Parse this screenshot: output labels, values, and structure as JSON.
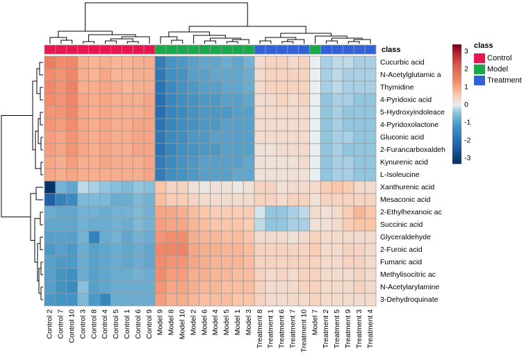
{
  "chart_data": {
    "type": "heatmap",
    "title": "",
    "annotation_label": "class",
    "columns": [
      "Control 2",
      "Control 7",
      "Control 10",
      "Control 3",
      "Control 8",
      "Control 4",
      "Control 5",
      "Control 1",
      "Control 6",
      "Control 9",
      "Model 9",
      "Model 8",
      "Model 10",
      "Model 2",
      "Model 6",
      "Model 4",
      "Model 5",
      "Model 1",
      "Model 3",
      "Treatment 8",
      "Treatment 1",
      "Treatment 6",
      "Treatment 7",
      "Treatment 10",
      "Model 7",
      "Treatment 2",
      "Treatment 5",
      "Treatment 9",
      "Treatment 3",
      "Treatment 4"
    ],
    "column_class": [
      "Control",
      "Control",
      "Control",
      "Control",
      "Control",
      "Control",
      "Control",
      "Control",
      "Control",
      "Control",
      "Model",
      "Model",
      "Model",
      "Model",
      "Model",
      "Model",
      "Model",
      "Model",
      "Model",
      "Treatment",
      "Treatment",
      "Treatment",
      "Treatment",
      "Treatment",
      "Model",
      "Treatment",
      "Treatment",
      "Treatment",
      "Treatment",
      "Treatment"
    ],
    "rows": [
      "Cucurbic acid",
      "N-Acetylglutamic a",
      "Thymidine",
      "4-Pyridoxic acid",
      "5-Hydroxyindoleace",
      "4-Pyridoxolactone",
      "Gluconic acid",
      "2-Furancarboxaldeh",
      "Kynurenic acid",
      "L-Isoleucine",
      "Xanthurenic acid",
      "Mesaconic acid",
      "2-Ethylhexanoic ac",
      "Succinic acid",
      "Glyceraldehyde",
      "2-Furoic acid",
      "Fumaric acid",
      "Methylisocitric ac",
      "N-Acetylarylamine",
      "3-Dehydroquinate"
    ],
    "values": [
      [
        1.6,
        1.3,
        1.4,
        0.9,
        0.8,
        0.9,
        0.8,
        0.8,
        0.9,
        0.9,
        -1.7,
        -1.2,
        -1.1,
        -1.0,
        -0.9,
        -0.9,
        -0.8,
        -0.9,
        -0.7,
        0.3,
        0.4,
        0.4,
        0.3,
        0.4,
        0.0,
        -0.3,
        -0.2,
        -0.2,
        -0.3,
        -0.3
      ],
      [
        1.3,
        1.2,
        1.4,
        0.9,
        0.8,
        1.0,
        0.8,
        0.8,
        0.9,
        0.9,
        -1.8,
        -1.3,
        -1.2,
        -1.0,
        -1.0,
        -0.9,
        -0.9,
        -0.9,
        -0.8,
        0.3,
        0.4,
        0.4,
        0.4,
        0.4,
        0.0,
        -0.3,
        -0.2,
        -0.3,
        -0.3,
        -0.3
      ],
      [
        1.4,
        1.2,
        1.5,
        0.9,
        0.9,
        1.0,
        0.9,
        0.8,
        0.9,
        0.9,
        -1.9,
        -1.4,
        -1.2,
        -1.1,
        -1.0,
        -1.0,
        -0.9,
        -0.9,
        -0.8,
        0.3,
        0.4,
        0.4,
        0.4,
        0.4,
        0.0,
        -0.3,
        -0.2,
        -0.3,
        -0.3,
        -0.3
      ],
      [
        1.3,
        1.2,
        1.4,
        1.0,
        0.9,
        1.0,
        0.9,
        0.9,
        0.9,
        1.0,
        -2.0,
        -1.5,
        -1.3,
        -1.2,
        -1.1,
        -1.1,
        -1.0,
        -1.0,
        -0.9,
        0.3,
        0.3,
        0.4,
        0.3,
        0.4,
        0.0,
        -0.4,
        -0.3,
        -0.3,
        -0.4,
        -0.4
      ],
      [
        1.2,
        1.2,
        1.4,
        1.0,
        0.9,
        1.0,
        0.9,
        0.9,
        0.9,
        1.0,
        -2.0,
        -1.5,
        -1.4,
        -1.2,
        -1.1,
        -1.1,
        -1.1,
        -1.0,
        -1.0,
        0.3,
        0.3,
        0.3,
        0.3,
        0.3,
        0.0,
        -0.4,
        -0.3,
        -0.4,
        -0.4,
        -0.4
      ],
      [
        1.2,
        1.1,
        1.3,
        1.0,
        0.9,
        1.0,
        0.9,
        0.9,
        1.0,
        1.0,
        -1.9,
        -1.5,
        -1.3,
        -1.2,
        -1.1,
        -1.1,
        -1.0,
        -1.0,
        -1.0,
        0.3,
        0.3,
        0.3,
        0.3,
        0.3,
        0.0,
        -0.4,
        -0.3,
        -0.4,
        -0.4,
        -0.4
      ],
      [
        1.1,
        1.0,
        1.2,
        1.0,
        0.9,
        1.0,
        0.9,
        0.9,
        1.0,
        1.0,
        -1.8,
        -1.4,
        -1.3,
        -1.1,
        -1.1,
        -1.0,
        -1.0,
        -1.0,
        -1.0,
        0.3,
        0.3,
        0.3,
        0.3,
        0.3,
        0.0,
        -0.4,
        -0.3,
        -0.3,
        -0.4,
        -0.4
      ],
      [
        1.1,
        1.0,
        1.2,
        1.0,
        0.9,
        1.0,
        0.9,
        0.9,
        1.0,
        1.0,
        -1.9,
        -1.5,
        -1.3,
        -1.2,
        -1.1,
        -1.1,
        -1.0,
        -1.0,
        -1.0,
        0.2,
        0.2,
        0.3,
        0.3,
        0.3,
        0.0,
        -0.4,
        -0.3,
        -0.4,
        -0.4,
        -0.4
      ],
      [
        1.0,
        0.9,
        1.1,
        0.9,
        0.9,
        1.0,
        0.9,
        0.9,
        0.9,
        1.0,
        -1.7,
        -1.4,
        -1.2,
        -1.1,
        -1.0,
        -1.0,
        -1.0,
        -1.0,
        -0.9,
        0.2,
        0.2,
        0.2,
        0.2,
        0.3,
        0.0,
        -0.4,
        -0.3,
        -0.3,
        -0.4,
        -0.4
      ],
      [
        1.0,
        0.9,
        1.0,
        0.9,
        0.9,
        0.9,
        0.9,
        0.9,
        0.9,
        1.0,
        -1.7,
        -1.3,
        -1.2,
        -1.1,
        -1.0,
        -1.0,
        -1.0,
        -0.9,
        -0.9,
        0.2,
        0.2,
        0.2,
        0.2,
        0.2,
        0.0,
        -0.4,
        -0.3,
        -0.3,
        -0.4,
        -0.4
      ],
      [
        -3.2,
        -0.7,
        -0.9,
        -0.2,
        -0.3,
        -0.4,
        -0.5,
        -0.6,
        -0.4,
        -0.5,
        0.6,
        0.4,
        0.4,
        0.2,
        0.1,
        0.2,
        0.2,
        0.1,
        0.2,
        0.4,
        0.4,
        0.2,
        0.3,
        0.3,
        0.3,
        0.5,
        0.6,
        0.5,
        0.3,
        0.3
      ],
      [
        -2.3,
        -1.6,
        -1.4,
        -0.6,
        -0.6,
        -0.6,
        -0.8,
        -0.8,
        -0.6,
        -0.7,
        0.7,
        0.5,
        0.5,
        0.4,
        0.3,
        0.3,
        0.3,
        0.3,
        0.3,
        0.4,
        0.4,
        0.3,
        0.4,
        0.4,
        0.2,
        0.4,
        0.4,
        0.4,
        0.4,
        0.4
      ],
      [
        -0.8,
        -0.9,
        -0.9,
        -0.7,
        -0.7,
        -0.8,
        -0.7,
        -0.7,
        -0.6,
        -0.7,
        1.0,
        1.0,
        0.9,
        0.7,
        0.6,
        0.5,
        0.5,
        0.5,
        0.5,
        -0.1,
        -0.4,
        -0.4,
        -0.3,
        -0.2,
        0.3,
        0.2,
        0.3,
        0.5,
        0.8,
        0.6
      ],
      [
        -0.9,
        -0.9,
        -0.9,
        -0.7,
        -0.8,
        -0.8,
        -0.7,
        -0.8,
        -0.6,
        -0.7,
        1.1,
        1.0,
        1.0,
        0.8,
        0.7,
        0.6,
        0.6,
        0.6,
        0.5,
        -0.2,
        -0.4,
        -0.4,
        -0.3,
        -0.3,
        0.2,
        0.2,
        0.3,
        0.5,
        0.6,
        0.6
      ],
      [
        -1.0,
        -1.0,
        -1.0,
        -0.7,
        -1.6,
        -0.8,
        -0.7,
        -0.9,
        -0.7,
        -0.8,
        1.2,
        1.3,
        1.3,
        0.9,
        0.8,
        0.8,
        0.7,
        0.7,
        0.6,
        0.3,
        0.3,
        0.3,
        0.2,
        0.3,
        0.4,
        0.3,
        0.3,
        0.3,
        0.3,
        0.3
      ],
      [
        -1.1,
        -1.0,
        -1.1,
        -0.8,
        -1.0,
        -0.9,
        -0.8,
        -0.9,
        -0.8,
        -0.9,
        1.4,
        1.4,
        1.5,
        1.0,
        0.9,
        0.9,
        0.8,
        0.8,
        0.7,
        0.4,
        0.4,
        0.4,
        0.4,
        0.4,
        0.5,
        0.3,
        0.3,
        0.4,
        0.4,
        0.3
      ],
      [
        -1.0,
        -1.1,
        -1.1,
        -0.8,
        -1.0,
        -0.9,
        -0.8,
        -0.9,
        -0.8,
        -0.9,
        1.3,
        1.2,
        1.2,
        1.0,
        0.9,
        0.8,
        0.8,
        0.8,
        0.7,
        0.4,
        0.4,
        0.4,
        0.4,
        0.4,
        0.4,
        0.3,
        0.3,
        0.4,
        0.4,
        0.3
      ],
      [
        -1.0,
        -1.2,
        -1.3,
        -0.8,
        -1.0,
        -0.9,
        -0.8,
        -0.8,
        -0.7,
        -0.8,
        1.3,
        1.1,
        1.1,
        0.9,
        0.9,
        0.8,
        0.8,
        0.7,
        0.7,
        0.4,
        0.3,
        0.4,
        0.3,
        0.4,
        0.4,
        0.3,
        0.3,
        0.3,
        0.4,
        0.3
      ],
      [
        -1.0,
        -1.2,
        -1.4,
        -0.5,
        -1.0,
        -0.9,
        -0.8,
        -0.8,
        -0.8,
        -0.8,
        1.2,
        1.0,
        1.0,
        0.9,
        0.8,
        0.8,
        0.7,
        0.7,
        0.7,
        0.4,
        0.3,
        0.3,
        0.3,
        0.4,
        0.4,
        0.3,
        0.3,
        0.3,
        0.4,
        0.3
      ],
      [
        -1.1,
        -1.2,
        -1.2,
        -0.6,
        -1.1,
        -1.5,
        -0.8,
        -0.8,
        -0.8,
        -0.8,
        1.1,
        0.9,
        0.9,
        0.8,
        0.7,
        0.7,
        0.7,
        0.6,
        0.6,
        0.4,
        0.3,
        0.3,
        0.3,
        0.3,
        0.4,
        0.3,
        0.3,
        0.3,
        0.3,
        0.3
      ]
    ],
    "color_scale": {
      "ticks": [
        3,
        2,
        1,
        0,
        -1,
        -2,
        -3
      ],
      "tick_labels": [
        "3",
        "2",
        "1",
        "0",
        "-1",
        "-2",
        "-3"
      ],
      "stops": [
        {
          "value": -3.3,
          "color": "#053061"
        },
        {
          "value": -2.2,
          "color": "#2166ac"
        },
        {
          "value": -1.2,
          "color": "#4393c3"
        },
        {
          "value": -0.4,
          "color": "#92c5de"
        },
        {
          "value": 0.0,
          "color": "#e9eef0"
        },
        {
          "value": 0.6,
          "color": "#fbc6a8"
        },
        {
          "value": 1.3,
          "color": "#f28d6b"
        },
        {
          "value": 2.2,
          "color": "#d6604d"
        },
        {
          "value": 3.0,
          "color": "#b2182b"
        },
        {
          "value": 3.4,
          "color": "#67001f"
        }
      ]
    },
    "legend": {
      "title": "class",
      "items": [
        {
          "label": "Control",
          "color": "#e8174f"
        },
        {
          "label": "Model",
          "color": "#17a94a"
        },
        {
          "label": "Treatment",
          "color": "#3361d6"
        }
      ]
    }
  }
}
